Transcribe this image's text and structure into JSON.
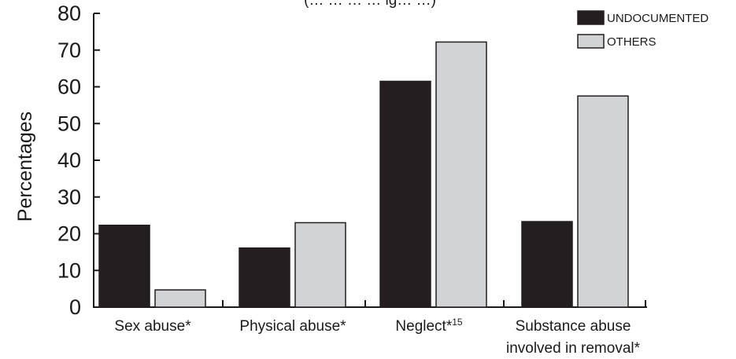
{
  "chart_data": {
    "type": "bar",
    "title": "(… … … … ig… …)",
    "ylabel": "Percentages",
    "xlabel": "",
    "ylim": [
      0,
      80
    ],
    "yticks": [
      0,
      10,
      20,
      30,
      40,
      50,
      60,
      70,
      80
    ],
    "categories": [
      {
        "text": "Sex abuse*",
        "sup": ""
      },
      {
        "text": "Physical abuse*",
        "sup": ""
      },
      {
        "text": "Neglect*",
        "sup": "15"
      },
      {
        "text": "Substance abuse",
        "text2": "involved in removal*",
        "sup": ""
      }
    ],
    "series": [
      {
        "name": "UNDOCUMENTED",
        "color": "#231f20",
        "values": [
          22.3,
          16.1,
          61.5,
          23.3
        ]
      },
      {
        "name": "OTHERS",
        "color": "#d1d3d4",
        "values": [
          4.7,
          23.0,
          72.2,
          57.5
        ]
      }
    ],
    "legend_position": "top-right",
    "grid": false
  }
}
